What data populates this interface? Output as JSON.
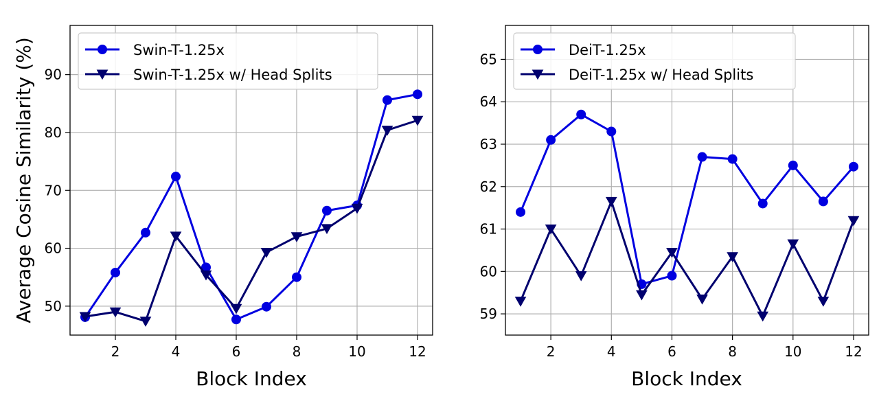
{
  "chart_data": [
    {
      "type": "line",
      "title": "",
      "xlabel": "Block Index",
      "ylabel": "Average Cosine Similarity (%)",
      "xlim": [
        0.5,
        12.5
      ],
      "ylim": [
        45,
        98.5
      ],
      "xticks": [
        2,
        4,
        6,
        8,
        10,
        12
      ],
      "yticks": [
        50,
        60,
        70,
        80,
        90
      ],
      "grid": true,
      "legend": "top-left",
      "x": [
        1,
        2,
        3,
        4,
        5,
        6,
        7,
        8,
        9,
        10,
        11,
        12
      ],
      "series": [
        {
          "name": "Swin-T-1.25x",
          "marker": "circle",
          "color": "#0000e0",
          "values": [
            48.1,
            55.8,
            62.7,
            72.4,
            56.7,
            47.7,
            49.9,
            55.0,
            66.5,
            67.4,
            85.6,
            86.6
          ]
        },
        {
          "name": "Swin-T-1.25x w/ Head Splits",
          "marker": "triangle-down",
          "color": "#00006e",
          "values": [
            48.2,
            49.0,
            47.4,
            62.1,
            55.4,
            49.6,
            59.3,
            62.0,
            63.4,
            66.9,
            80.4,
            82.1
          ]
        }
      ]
    },
    {
      "type": "line",
      "title": "",
      "xlabel": "Block Index",
      "ylabel": "",
      "xlim": [
        0.5,
        12.5
      ],
      "ylim": [
        58.5,
        65.8
      ],
      "xticks": [
        2,
        4,
        6,
        8,
        10,
        12
      ],
      "yticks": [
        59,
        60,
        61,
        62,
        63,
        64,
        65
      ],
      "grid": true,
      "legend": "top-left",
      "x": [
        1,
        2,
        3,
        4,
        5,
        6,
        7,
        8,
        9,
        10,
        11,
        12
      ],
      "series": [
        {
          "name": "DeiT-1.25x",
          "marker": "circle",
          "color": "#0000e0",
          "values": [
            61.4,
            63.1,
            63.7,
            63.3,
            59.7,
            59.9,
            62.7,
            62.65,
            61.6,
            62.5,
            61.65,
            62.47
          ]
        },
        {
          "name": "DeiT-1.25x w/ Head Splits",
          "marker": "triangle-down",
          "color": "#00006e",
          "values": [
            59.3,
            61.0,
            59.9,
            61.65,
            59.45,
            60.45,
            59.35,
            60.35,
            58.95,
            60.65,
            59.3,
            61.2
          ]
        }
      ]
    }
  ]
}
